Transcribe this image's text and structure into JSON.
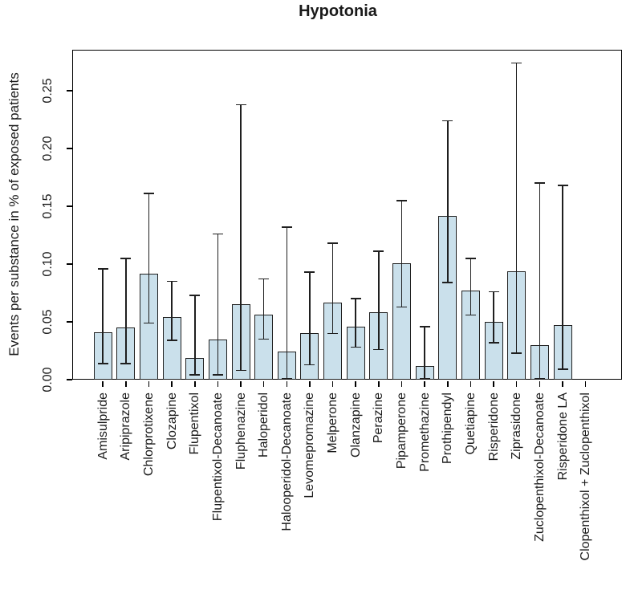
{
  "chart_data": {
    "type": "bar",
    "title": "Hypotonia",
    "ylabel": "Events per substance in % of exposed patients",
    "xlabel": "",
    "ylim": [
      0,
      0.285
    ],
    "yticks": [
      "0.00",
      "0.05",
      "0.10",
      "0.15",
      "0.20",
      "0.25"
    ],
    "grid": false,
    "legend": null,
    "bar_color": "#cae0eb",
    "bar_border_color": "#1f1f1f",
    "error_bar_color": "#1f1f1f",
    "categories": [
      "Amisulpride",
      "Aripiprazole",
      "Chlorprotixene",
      "Clozapine",
      "Flupentixol",
      "Flupentixol-Decanoate",
      "Fluphenazine",
      "Haloperidol",
      "Halooperidol-Decanoate",
      "Levomepromazine",
      "Melperone",
      "Olanzapine",
      "Perazine",
      "Pipamperone",
      "Promethazine",
      "Prothipendyl",
      "Quetiapine",
      "Risperidone",
      "Ziprasidone",
      "Zuclopenthixol-Decanoate",
      "Risperidone LA",
      "Clopenthixol + Zuclopenthixol"
    ],
    "values": [
      0.041,
      0.045,
      0.092,
      0.054,
      0.019,
      0.035,
      0.065,
      0.056,
      0.024,
      0.04,
      0.067,
      0.046,
      0.058,
      0.101,
      0.012,
      0.142,
      0.077,
      0.05,
      0.094,
      0.03,
      0.047,
      0
    ],
    "error_bars": {
      "low": [
        0.014,
        0.014,
        0.049,
        0.034,
        0.004,
        0.004,
        0.008,
        0.035,
        0.001,
        0.013,
        0.04,
        0.028,
        0.026,
        0.063,
        0.001,
        0.084,
        0.056,
        0.032,
        0.023,
        0.001,
        0.009,
        null
      ],
      "high": [
        0.096,
        0.105,
        0.161,
        0.085,
        0.073,
        0.126,
        0.238,
        0.087,
        0.132,
        0.093,
        0.118,
        0.07,
        0.111,
        0.155,
        0.046,
        0.224,
        0.105,
        0.076,
        0.274,
        0.17,
        0.168,
        null
      ]
    }
  }
}
